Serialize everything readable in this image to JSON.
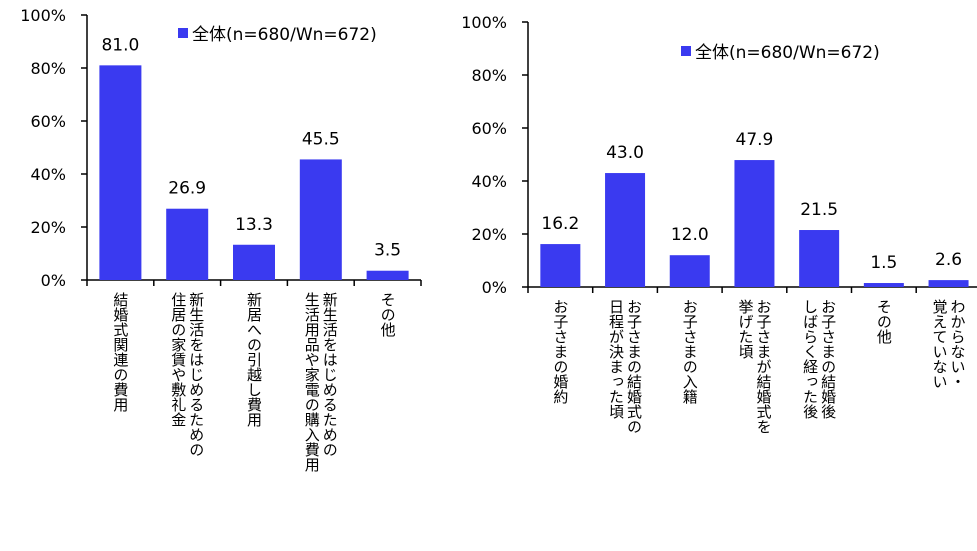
{
  "colors": {
    "bar": "#3a3af0",
    "axis": "#000000"
  },
  "chart_data": [
    {
      "type": "bar",
      "legend": "全体(n=680/Wn=672)",
      "ylim": [
        0,
        100
      ],
      "yticks": [
        "0%",
        "20%",
        "40%",
        "60%",
        "80%",
        "100%"
      ],
      "categories": [
        "結婚式関連の費用",
        "新生活をはじめるための\n住居の家賃や敷礼金",
        "新居への引越し費用",
        "新生活をはじめるための\n生活用品や家電の購入費用",
        "その他"
      ],
      "values": [
        81.0,
        26.9,
        13.3,
        45.5,
        3.5
      ],
      "value_labels": [
        "81.0",
        "26.9",
        "13.3",
        "45.5",
        "3.5"
      ]
    },
    {
      "type": "bar",
      "legend": "全体(n=680/Wn=672)",
      "ylim": [
        0,
        100
      ],
      "yticks": [
        "0%",
        "20%",
        "40%",
        "60%",
        "80%",
        "100%"
      ],
      "categories": [
        "お子さまの婚約",
        "お子さまの結婚式の\n日程が決まった頃",
        "お子さまの入籍",
        "お子さまが結婚式を\n挙げた頃",
        "お子さまの結婚後\nしばらく経った後",
        "その他",
        "わからない・\n覚えていない"
      ],
      "values": [
        16.2,
        43.0,
        12.0,
        47.9,
        21.5,
        1.5,
        2.6
      ],
      "value_labels": [
        "16.2",
        "43.0",
        "12.0",
        "47.9",
        "21.5",
        "1.5",
        "2.6"
      ]
    }
  ]
}
